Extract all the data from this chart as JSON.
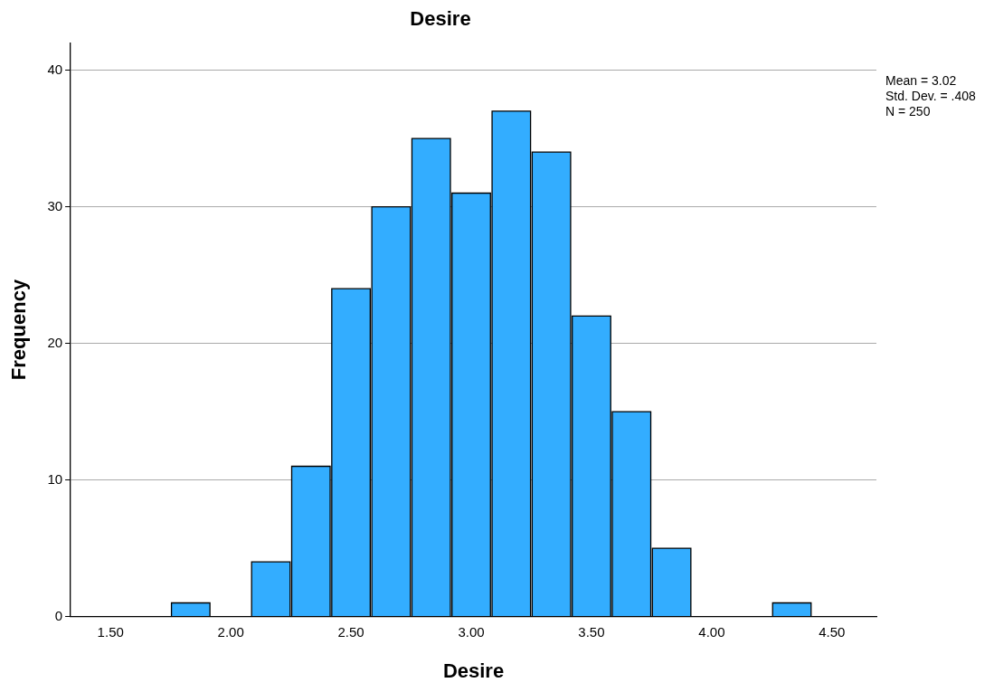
{
  "chart_data": {
    "type": "histogram",
    "title": "Desire",
    "xlabel": "Desire",
    "ylabel": "Frequency",
    "bins": [
      1.75,
      1.9167,
      2.0833,
      2.25,
      2.4167,
      2.5833,
      2.75,
      2.9167,
      3.0833,
      3.25,
      3.4167,
      3.5833,
      3.75,
      3.9167,
      4.0833,
      4.25,
      4.4167
    ],
    "values": [
      1,
      0,
      4,
      11,
      24,
      30,
      35,
      31,
      37,
      34,
      22,
      15,
      5,
      0,
      0,
      1
    ],
    "color": "#33adff",
    "xlim": [
      1.334,
      4.685
    ],
    "xticks": [
      {
        "value": 1.5,
        "label": "1.50"
      },
      {
        "value": 2,
        "label": "2.00"
      },
      {
        "value": 2.5,
        "label": "2.50"
      },
      {
        "value": 3,
        "label": "3.00"
      },
      {
        "value": 3.5,
        "label": "3.50"
      },
      {
        "value": 4,
        "label": "4.00"
      },
      {
        "value": 4.5,
        "label": "4.50"
      }
    ],
    "ylim": [
      0,
      42
    ],
    "yticks": [
      0,
      10,
      20,
      30,
      40
    ],
    "grid": "y",
    "legend": false,
    "annotations": [
      "Mean = 3.02",
      "Std. Dev. = .408",
      "N = 250"
    ]
  }
}
